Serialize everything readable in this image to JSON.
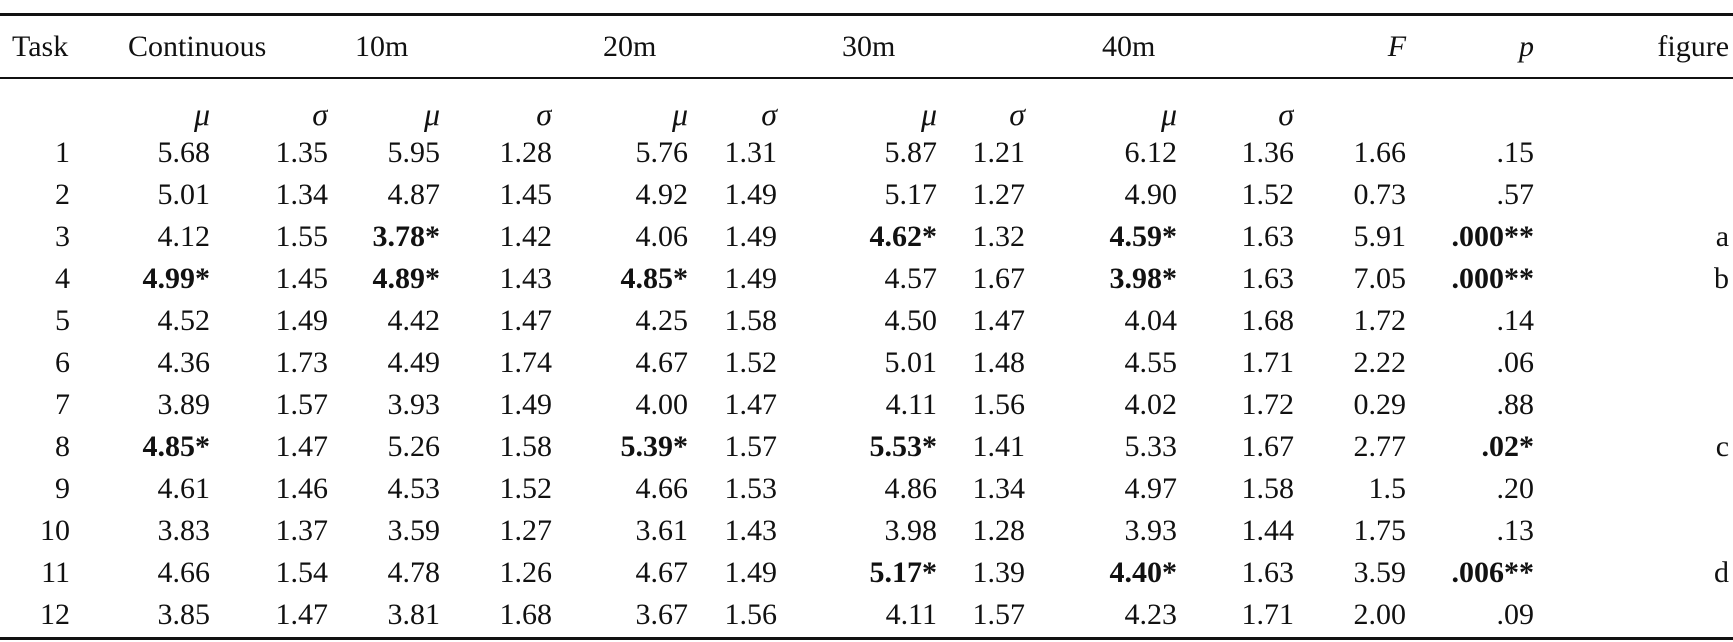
{
  "table": {
    "headers": {
      "task": "Task",
      "continuous": "Continuous",
      "m10": "10m",
      "m20": "20m",
      "m30": "30m",
      "m40": "40m",
      "f": "F",
      "p": "p",
      "figure": "figure"
    },
    "subheaders": {
      "mu": "μ",
      "sigma": "σ"
    },
    "rows": [
      {
        "task": "1",
        "cells": [
          "5.68",
          "1.35",
          "5.95",
          "1.28",
          "5.76",
          "1.31",
          "5.87",
          "1.21",
          "6.12",
          "1.36",
          "1.66",
          ".15"
        ],
        "bold": [
          false,
          false,
          false,
          false,
          false,
          false,
          false,
          false,
          false,
          false,
          false,
          false
        ],
        "figure": ""
      },
      {
        "task": "2",
        "cells": [
          "5.01",
          "1.34",
          "4.87",
          "1.45",
          "4.92",
          "1.49",
          "5.17",
          "1.27",
          "4.90",
          "1.52",
          "0.73",
          ".57"
        ],
        "bold": [
          false,
          false,
          false,
          false,
          false,
          false,
          false,
          false,
          false,
          false,
          false,
          false
        ],
        "figure": ""
      },
      {
        "task": "3",
        "cells": [
          "4.12",
          "1.55",
          "3.78*",
          "1.42",
          "4.06",
          "1.49",
          "4.62*",
          "1.32",
          "4.59*",
          "1.63",
          "5.91",
          ".000**"
        ],
        "bold": [
          false,
          false,
          true,
          false,
          false,
          false,
          true,
          false,
          true,
          false,
          false,
          true
        ],
        "figure": "a"
      },
      {
        "task": "4",
        "cells": [
          "4.99*",
          "1.45",
          "4.89*",
          "1.43",
          "4.85*",
          "1.49",
          "4.57",
          "1.67",
          "3.98*",
          "1.63",
          "7.05",
          ".000**"
        ],
        "bold": [
          true,
          false,
          true,
          false,
          true,
          false,
          false,
          false,
          true,
          false,
          false,
          true
        ],
        "figure": "b"
      },
      {
        "task": "5",
        "cells": [
          "4.52",
          "1.49",
          "4.42",
          "1.47",
          "4.25",
          "1.58",
          "4.50",
          "1.47",
          "4.04",
          "1.68",
          "1.72",
          ".14"
        ],
        "bold": [
          false,
          false,
          false,
          false,
          false,
          false,
          false,
          false,
          false,
          false,
          false,
          false
        ],
        "figure": ""
      },
      {
        "task": "6",
        "cells": [
          "4.36",
          "1.73",
          "4.49",
          "1.74",
          "4.67",
          "1.52",
          "5.01",
          "1.48",
          "4.55",
          "1.71",
          "2.22",
          ".06"
        ],
        "bold": [
          false,
          false,
          false,
          false,
          false,
          false,
          false,
          false,
          false,
          false,
          false,
          false
        ],
        "figure": ""
      },
      {
        "task": "7",
        "cells": [
          "3.89",
          "1.57",
          "3.93",
          "1.49",
          "4.00",
          "1.47",
          "4.11",
          "1.56",
          "4.02",
          "1.72",
          "0.29",
          ".88"
        ],
        "bold": [
          false,
          false,
          false,
          false,
          false,
          false,
          false,
          false,
          false,
          false,
          false,
          false
        ],
        "figure": ""
      },
      {
        "task": "8",
        "cells": [
          "4.85*",
          "1.47",
          "5.26",
          "1.58",
          "5.39*",
          "1.57",
          "5.53*",
          "1.41",
          "5.33",
          "1.67",
          "2.77",
          ".02*"
        ],
        "bold": [
          true,
          false,
          false,
          false,
          true,
          false,
          true,
          false,
          false,
          false,
          false,
          true
        ],
        "figure": "c"
      },
      {
        "task": "9",
        "cells": [
          "4.61",
          "1.46",
          "4.53",
          "1.52",
          "4.66",
          "1.53",
          "4.86",
          "1.34",
          "4.97",
          "1.58",
          "1.5",
          ".20"
        ],
        "bold": [
          false,
          false,
          false,
          false,
          false,
          false,
          false,
          false,
          false,
          false,
          false,
          false
        ],
        "figure": ""
      },
      {
        "task": "10",
        "cells": [
          "3.83",
          "1.37",
          "3.59",
          "1.27",
          "3.61",
          "1.43",
          "3.98",
          "1.28",
          "3.93",
          "1.44",
          "1.75",
          ".13"
        ],
        "bold": [
          false,
          false,
          false,
          false,
          false,
          false,
          false,
          false,
          false,
          false,
          false,
          false
        ],
        "figure": ""
      },
      {
        "task": "11",
        "cells": [
          "4.66",
          "1.54",
          "4.78",
          "1.26",
          "4.67",
          "1.49",
          "5.17*",
          "1.39",
          "4.40*",
          "1.63",
          "3.59",
          ".006**"
        ],
        "bold": [
          false,
          false,
          false,
          false,
          false,
          false,
          true,
          false,
          true,
          false,
          false,
          true
        ],
        "figure": "d"
      },
      {
        "task": "12",
        "cells": [
          "3.85",
          "1.47",
          "3.81",
          "1.68",
          "3.67",
          "1.56",
          "4.11",
          "1.57",
          "4.23",
          "1.71",
          "2.00",
          ".09"
        ],
        "bold": [
          false,
          false,
          false,
          false,
          false,
          false,
          false,
          false,
          false,
          false,
          false,
          false
        ],
        "figure": ""
      }
    ]
  }
}
